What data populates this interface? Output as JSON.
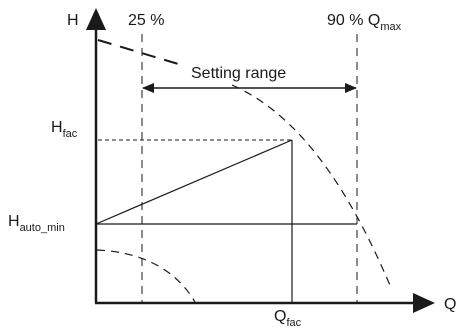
{
  "labels": {
    "axis_h": "H",
    "axis_q": "Q",
    "pct_25": "25 %",
    "pct_90": "90 % ",
    "q_main": "Q",
    "q_max_sub": "max",
    "setting_range": "Setting range",
    "h_fac_main": "H",
    "h_fac_sub": "fac",
    "h_auto_main": "H",
    "h_auto_sub": "auto_min",
    "q_fac_main": "Q",
    "q_fac_sub": "fac"
  }
}
